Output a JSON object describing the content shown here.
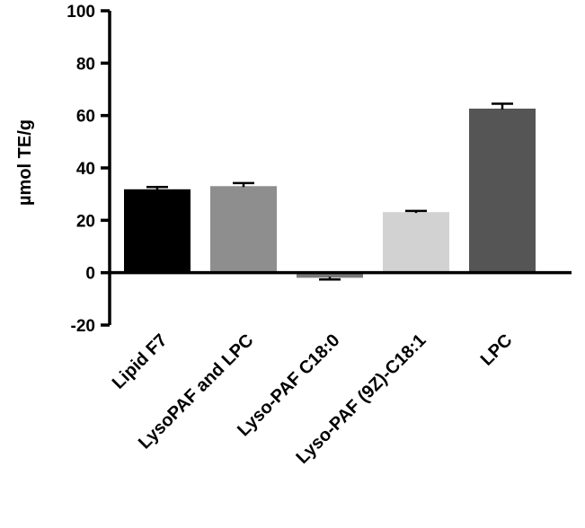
{
  "chart_data": {
    "type": "bar",
    "title": "",
    "xlabel": "",
    "ylabel": "µmol TE/g",
    "ylim": [
      -20,
      100
    ],
    "yticks": [
      -20,
      0,
      20,
      40,
      60,
      80,
      100
    ],
    "ytick_labels": [
      "-20",
      "0",
      "20",
      "40",
      "60",
      "80",
      "100"
    ],
    "categories": [
      "Lipid F7",
      "LysoPAF and LPC",
      "Lyso-PAF C18:0",
      "Lyso-PAF (9Z)-C18:1",
      "LPC"
    ],
    "values": [
      31.5,
      32.7,
      -1.6,
      22.8,
      62.3
    ],
    "errors": [
      1.2,
      1.5,
      1.0,
      0.8,
      2.2
    ],
    "bar_colors": [
      "#000000",
      "#8e8e8e",
      "#7a7a7a",
      "#d2d2d2",
      "#555555"
    ],
    "grid": false,
    "legend": false
  }
}
